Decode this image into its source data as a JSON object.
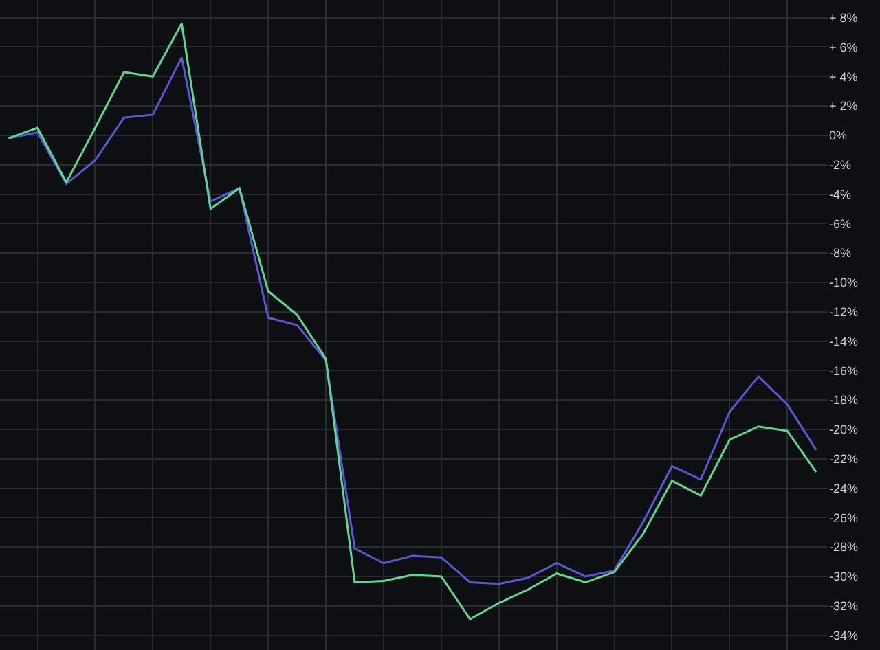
{
  "chart_data": {
    "type": "line",
    "categories": [
      null,
      null,
      null,
      null,
      null,
      null,
      null,
      null,
      null,
      null,
      null,
      null,
      null,
      null,
      null,
      null,
      null,
      null,
      null,
      null,
      null,
      null,
      null,
      null,
      null,
      null,
      null,
      null,
      null
    ],
    "series": [
      {
        "color": "#5b57d9",
        "values": [
          -0.2,
          0.2,
          -3.3,
          -1.7,
          1.2,
          1.4,
          5.3,
          -4.5,
          -3.6,
          -12.4,
          -12.9,
          -15.3,
          -28.1,
          -29.1,
          -28.6,
          -28.7,
          -30.4,
          -30.5,
          -30.1,
          -29.1,
          -30.0,
          -29.6,
          -26.3,
          -22.5,
          -23.4,
          -18.8,
          -16.4,
          -18.3,
          -21.4
        ]
      },
      {
        "color": "#5fd88f",
        "values": [
          -0.2,
          0.5,
          -3.2,
          0.5,
          4.3,
          4.0,
          7.6,
          -5.0,
          -3.6,
          -10.6,
          -12.2,
          -15.2,
          -30.4,
          -30.3,
          -29.9,
          -30.0,
          -32.9,
          -31.8,
          -30.9,
          -29.8,
          -30.4,
          -29.7,
          -27.1,
          -23.5,
          -24.5,
          -20.7,
          -19.8,
          -20.1,
          -22.9
        ]
      }
    ],
    "ylim": [
      -35,
      9.2
    ],
    "yticks": [
      {
        "value": 8,
        "label": "+ 8%"
      },
      {
        "value": 6,
        "label": "+ 6%"
      },
      {
        "value": 4,
        "label": "+ 4%"
      },
      {
        "value": 2,
        "label": "+ 2%"
      },
      {
        "value": 0,
        "label": "0%"
      },
      {
        "value": -2,
        "label": "-2%"
      },
      {
        "value": -4,
        "label": "-4%"
      },
      {
        "value": -6,
        "label": "-6%"
      },
      {
        "value": -8,
        "label": "-8%"
      },
      {
        "value": -10,
        "label": "-10%"
      },
      {
        "value": -12,
        "label": "-12%"
      },
      {
        "value": -14,
        "label": "-14%"
      },
      {
        "value": -16,
        "label": "-16%"
      },
      {
        "value": -18,
        "label": "-18%"
      },
      {
        "value": -20,
        "label": "-20%"
      },
      {
        "value": -22,
        "label": "-22%"
      },
      {
        "value": -24,
        "label": "-24%"
      },
      {
        "value": -26,
        "label": "-26%"
      },
      {
        "value": -28,
        "label": "-28%"
      },
      {
        "value": -30,
        "label": "-30%"
      },
      {
        "value": -32,
        "label": "-32%"
      },
      {
        "value": -34,
        "label": "-34%"
      }
    ],
    "grid": true,
    "tick_labels": "y",
    "marker": "none",
    "line_style": "solid"
  }
}
